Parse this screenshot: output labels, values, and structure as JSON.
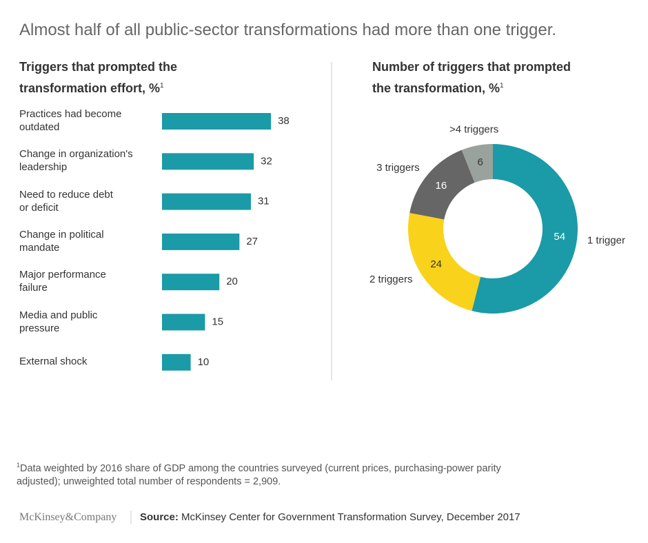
{
  "title": "Almost half of all public-sector transformations had more than one trigger.",
  "chart_data": [
    {
      "type": "bar",
      "orientation": "horizontal",
      "title": "Triggers that prompted the\ntransformation effort, %",
      "title_note": "1",
      "categories": [
        "Practices had become\noutdated",
        "Change in organization's\nleadership",
        "Need to reduce debt\nor deficit",
        "Change in political\nmandate",
        "Major performance\nfailure",
        "Media and public\npressure",
        "External shock"
      ],
      "values": [
        38,
        32,
        31,
        27,
        20,
        15,
        10
      ],
      "color": "#1a9ba7"
    },
    {
      "type": "donut",
      "title": "Number of triggers that prompted\nthe transformation, %",
      "title_note": "1",
      "categories": [
        "1 trigger",
        "2 triggers",
        "3 triggers",
        ">4 triggers"
      ],
      "values": [
        54,
        24,
        16,
        6
      ],
      "colors": [
        "#1a9ba7",
        "#f9d21b",
        "#666666",
        "#9aa29d"
      ]
    }
  ],
  "footnote": {
    "marker": "1",
    "text": "Data weighted by 2016 share of GDP among the countries surveyed (current prices, purchasing-power parity\nadjusted); unweighted total number of respondents = 2,909."
  },
  "source": {
    "label": "Source:",
    "text": "McKinsey Center for Government Transformation Survey, December 2017"
  },
  "logo": "McKinsey&Company"
}
